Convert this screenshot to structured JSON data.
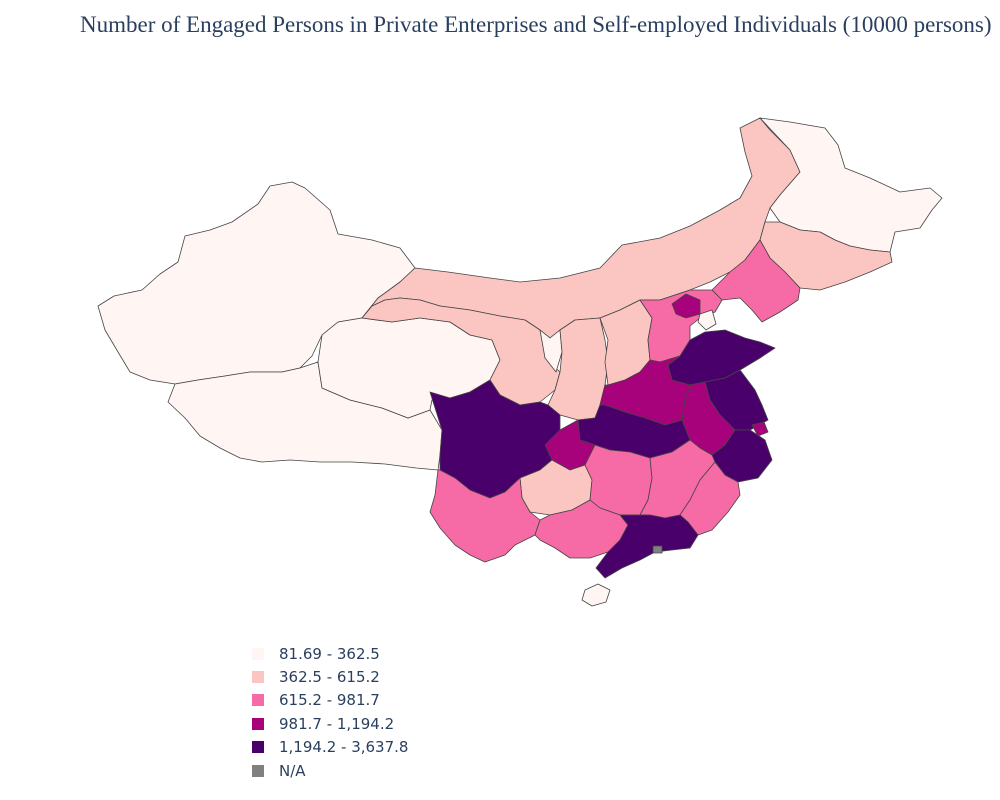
{
  "title": "Number of Engaged Persons in Private Enterprises and Self-employed Individuals (10000 persons)",
  "colors": {
    "c1": "#fff5f2",
    "c2": "#fbc5c2",
    "c3": "#f66aa6",
    "c4": "#a7017c",
    "c5": "#4a006a",
    "na": "#808080"
  },
  "legend": [
    {
      "label": "81.69 - 362.5",
      "color": "#fff5f2"
    },
    {
      "label": "362.5 - 615.2",
      "color": "#fbc5c2"
    },
    {
      "label": "615.2 - 981.7",
      "color": "#f66aa6"
    },
    {
      "label": "981.7 - 1,194.2",
      "color": "#a7017c"
    },
    {
      "label": "1,194.2 - 3,637.8",
      "color": "#4a006a"
    },
    {
      "label": "N/A",
      "color": "#808080"
    }
  ],
  "chart_data": {
    "type": "choropleth",
    "title": "Number of Engaged Persons in Private Enterprises and Self-employed Individuals (10000 persons)",
    "bins": [
      "81.69 - 362.5",
      "362.5 - 615.2",
      "615.2 - 981.7",
      "981.7 - 1,194.2",
      "1,194.2 - 3,637.8",
      "N/A"
    ],
    "regions": [
      {
        "name": "Xinjiang",
        "bin": 0
      },
      {
        "name": "Tibet",
        "bin": 0
      },
      {
        "name": "Qinghai",
        "bin": 0
      },
      {
        "name": "Heilongjiang",
        "bin": 0
      },
      {
        "name": "Ningxia",
        "bin": 0
      },
      {
        "name": "Hainan",
        "bin": 0
      },
      {
        "name": "Tianjin",
        "bin": 0
      },
      {
        "name": "Inner Mongolia",
        "bin": 1
      },
      {
        "name": "Jilin",
        "bin": 1
      },
      {
        "name": "Gansu",
        "bin": 1
      },
      {
        "name": "Shaanxi",
        "bin": 1
      },
      {
        "name": "Shanxi",
        "bin": 1
      },
      {
        "name": "Guizhou",
        "bin": 1
      },
      {
        "name": "Liaoning",
        "bin": 2
      },
      {
        "name": "Hebei",
        "bin": 2
      },
      {
        "name": "Yunnan",
        "bin": 2
      },
      {
        "name": "Guangxi",
        "bin": 2
      },
      {
        "name": "Hunan",
        "bin": 2
      },
      {
        "name": "Jiangxi",
        "bin": 2
      },
      {
        "name": "Fujian",
        "bin": 2
      },
      {
        "name": "Beijing",
        "bin": 3
      },
      {
        "name": "Henan",
        "bin": 3
      },
      {
        "name": "Anhui",
        "bin": 3
      },
      {
        "name": "Chongqing",
        "bin": 3
      },
      {
        "name": "Shanghai",
        "bin": 3
      },
      {
        "name": "Sichuan",
        "bin": 4
      },
      {
        "name": "Hubei",
        "bin": 4
      },
      {
        "name": "Shandong",
        "bin": 4
      },
      {
        "name": "Jiangsu",
        "bin": 4
      },
      {
        "name": "Zhejiang",
        "bin": 4
      },
      {
        "name": "Guangdong",
        "bin": 4
      },
      {
        "name": "Hong Kong",
        "bin": 5
      }
    ]
  }
}
